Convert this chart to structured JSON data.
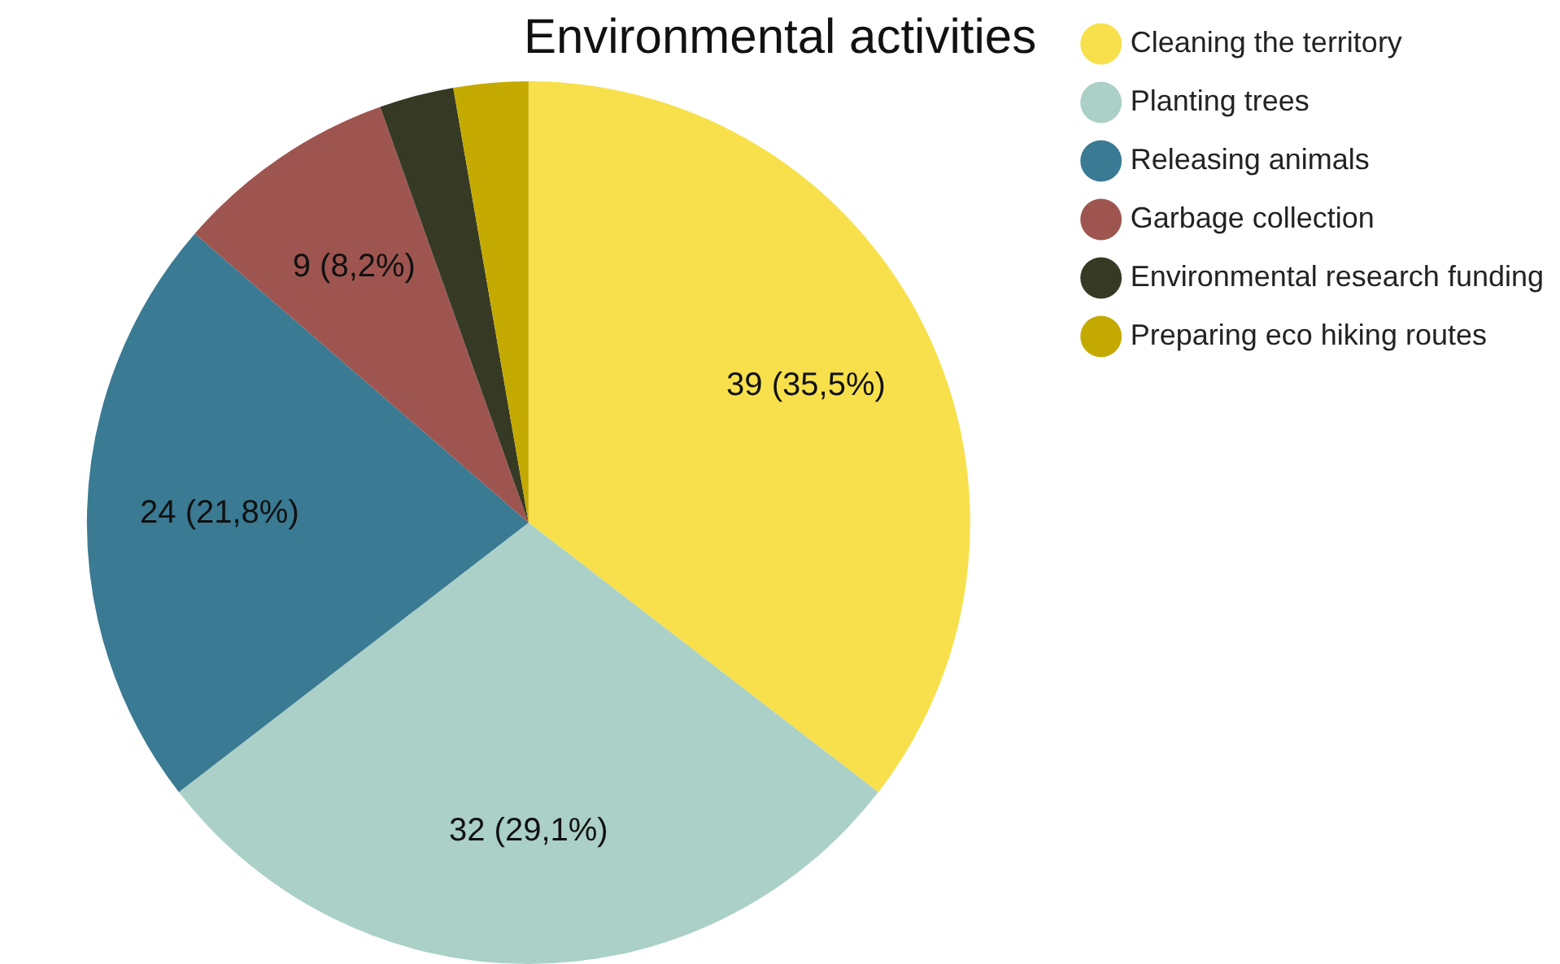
{
  "chart_data": {
    "type": "pie",
    "title": "Environmental activities",
    "categories": [
      "Cleaning the territory",
      "Planting trees",
      "Releasing animals",
      "Garbage collection",
      "Environmental research funding",
      "Preparing eco hiking routes"
    ],
    "values": [
      39,
      32,
      24,
      9,
      3,
      3
    ],
    "colors": [
      "#f7e04b",
      "#abd0c7",
      "#3a7a93",
      "#9e5550",
      "#363a24",
      "#c4aa00"
    ],
    "value_labels": [
      "39 (35,5%)",
      "32 (29,1%)",
      "24 (21,8%)",
      "9 (8,2%)",
      null,
      null
    ],
    "legend": "top right"
  }
}
